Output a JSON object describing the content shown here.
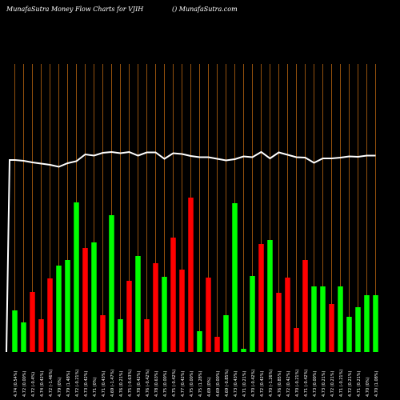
{
  "header": {
    "title": "MunafaSutra  Money Flow  Charts for VJIH",
    "site": "() MunafaSutra.com"
  },
  "colors": {
    "background": "#000000",
    "positive": "#00ff00",
    "negative": "#ff0000",
    "grid": "#b8650f",
    "line": "#ffffff",
    "text": "#ffffff"
  },
  "chart_data": {
    "type": "bar",
    "grid": "vertical",
    "categories": [
      "4.74 (0.54%)",
      "4.72 (0.00%)",
      "4.72 (-0.4%)",
      "4.74 (0.42%)",
      "4.72 (-1.46%)",
      "4.79 (0%)",
      "4.79 (1.48%)",
      "4.72 (-0.21%)",
      "4.73 (0.42%)",
      "4.71 (0%)",
      "4.71 (0.43%)",
      "4.69 (-1.47%)",
      "4.76 (0.21%)",
      "4.75 (-0.63%)",
      "4.78 (0.42%)",
      "4.76 (-0.42%)",
      "4.78 (0.63%)",
      "4.75 (0.00%)",
      "4.75 (-0.42%)",
      "4.77 (0.42%)",
      "4.75 (0.00%)",
      "4.75 (1.28%)",
      "4.69 (0%)",
      "4.69 (0.00%)",
      "4.69 (-0.85%)",
      "4.73 (0.43%)",
      "4.71 (0.21%)",
      "4.70 (-0.42%)",
      "4.72 (0.42%)",
      "4.70 (-1.26%)",
      "4.76 (0.85%)",
      "4.72 (0.42%)",
      "4.70 (-0.21%)",
      "4.71 (-0.42%)",
      "4.73 (0.00%)",
      "4.73 (0.21%)",
      "4.72 (0.21%)",
      "4.71 (-0.21%)",
      "4.72 (0.21%)",
      "4.71 (0.21%)",
      "4.70 (0%)",
      "4.70 (1.08%)"
    ],
    "values": [
      52,
      37,
      75,
      41,
      92,
      108,
      115,
      187,
      130,
      137,
      46,
      171,
      41,
      89,
      120,
      41,
      111,
      94,
      143,
      103,
      193,
      26,
      93,
      19,
      46,
      186,
      4,
      95,
      135,
      140,
      74,
      93,
      30,
      115,
      82,
      82,
      60,
      82,
      44,
      56,
      71,
      71
    ],
    "directions": [
      "up",
      "up",
      "down",
      "down",
      "down",
      "up",
      "up",
      "up",
      "down",
      "up",
      "down",
      "up",
      "up",
      "down",
      "up",
      "down",
      "down",
      "up",
      "down",
      "down",
      "down",
      "up",
      "down",
      "down",
      "up",
      "up",
      "up",
      "up",
      "down",
      "up",
      "down",
      "down",
      "down",
      "down",
      "up",
      "up",
      "down",
      "up",
      "up",
      "up",
      "up",
      "up"
    ],
    "money_flow_line": [
      98.5,
      98.3,
      97.9,
      97.6,
      97.3,
      96.8,
      97.7,
      98.2,
      99.9,
      99.6,
      100.3,
      100.5,
      100.2,
      100.5,
      99.6,
      100.4,
      100.4,
      98.8,
      100.2,
      100.0,
      99.5,
      99.2,
      99.2,
      98.8,
      98.4,
      98.7,
      99.4,
      99.2,
      100.5,
      98.9,
      100.4,
      99.8,
      99.2,
      99.1,
      97.8,
      98.9,
      98.9,
      99.1,
      99.4,
      99.3,
      99.6,
      99.6
    ],
    "line_start": 98.5,
    "line_baseline": 0,
    "xlabel": "",
    "ylabel": ""
  }
}
